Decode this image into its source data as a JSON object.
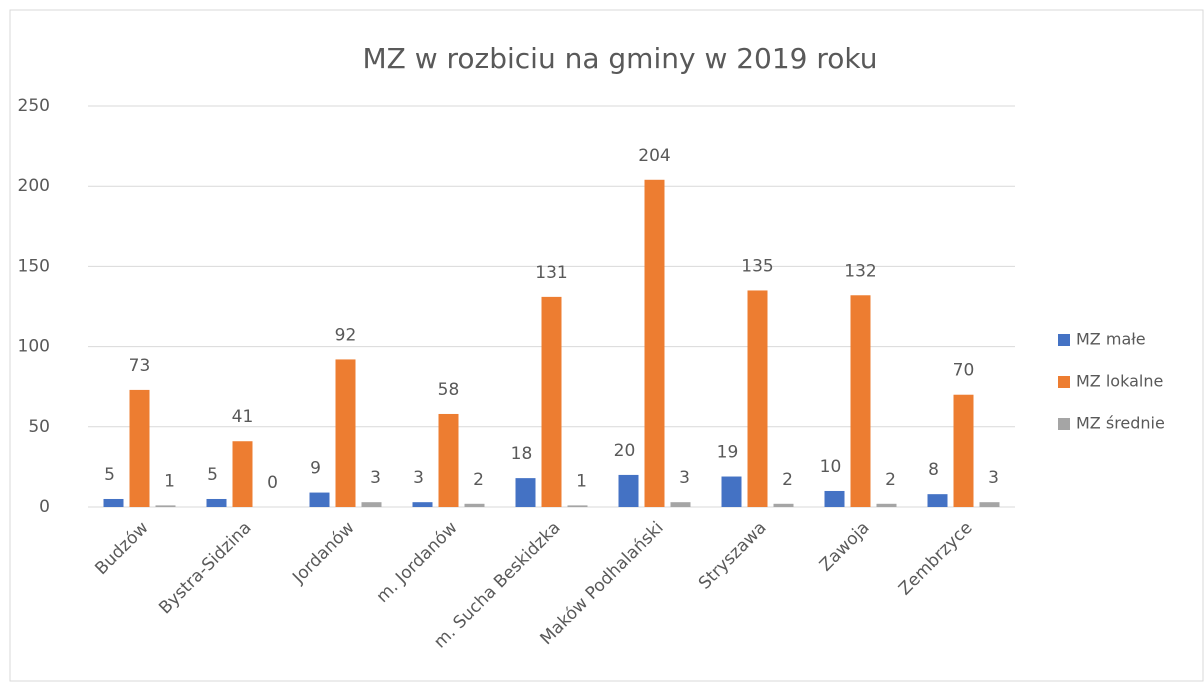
{
  "chart_data": {
    "type": "bar",
    "title": "MZ w rozbiciu na gminy w 2019 roku",
    "categories": [
      "Budzów",
      "Bystra-Sidzina",
      "Jordanów",
      "m. Jordanów",
      "m. Sucha Beskidzka",
      "Maków Podhalański",
      "Stryszawa",
      "Zawoja",
      "Zembrzyce"
    ],
    "series": [
      {
        "name": "MZ małe",
        "color": "#4472c4",
        "values": [
          5,
          5,
          9,
          3,
          18,
          20,
          19,
          10,
          8
        ]
      },
      {
        "name": "MZ lokalne",
        "color": "#ed7d31",
        "values": [
          73,
          41,
          92,
          58,
          131,
          204,
          135,
          132,
          70
        ]
      },
      {
        "name": "MZ średnie",
        "color": "#a5a5a5",
        "values": [
          1,
          0,
          3,
          2,
          1,
          3,
          2,
          2,
          3
        ]
      }
    ],
    "ylim": [
      0,
      250
    ],
    "yticks": [
      0,
      50,
      100,
      150,
      200,
      250
    ],
    "grid": true,
    "legend": "right"
  }
}
